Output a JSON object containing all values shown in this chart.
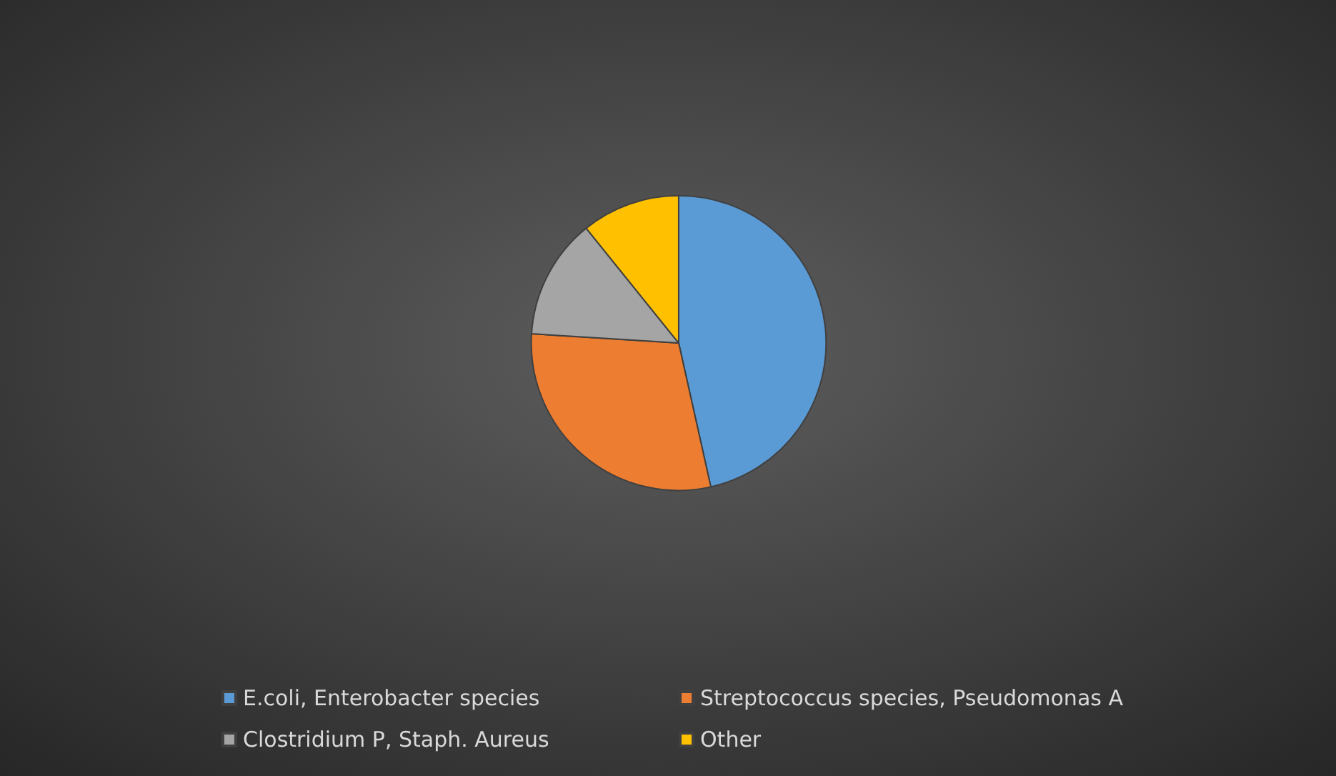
{
  "chart_data": {
    "type": "pie",
    "categories": [
      "E.coli, Enterobacter species",
      "Streptococcus species, Pseudomonas A",
      "Clostridium P, Staph. Aureus",
      "Other"
    ],
    "values": [
      46.5,
      29.5,
      13.2,
      10.8
    ],
    "colors": [
      "#5b9bd5",
      "#ed7d31",
      "#a5a5a5",
      "#ffc000"
    ],
    "legend": "bottom"
  }
}
